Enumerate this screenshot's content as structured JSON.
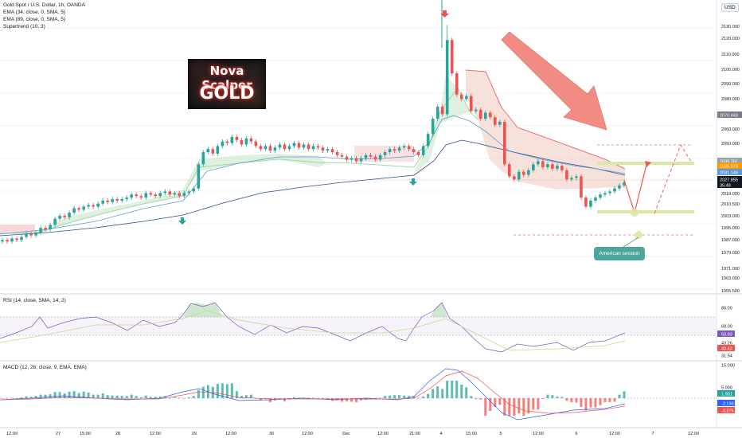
{
  "header": {
    "symbol": "Gold Spot / U.S. Dollar, 1h, OANDA",
    "ind1": "EMA (34, close, 0, SMA, 5)",
    "ind2": "EMA (89, close, 0, SMA, 5)",
    "ind3": "Supertrend (10, 3)"
  },
  "currency_badge": "USD",
  "logo": {
    "line1": "Nova Scalper",
    "line2": "GOLD"
  },
  "session_label": "American session",
  "rsi_label": "RSI (14, close, SMA, 14, 2)",
  "macd_label": "MACD (12, 26, close, 9, EMA, EMA)",
  "colors": {
    "up": "#26a69a",
    "down": "#ef5350",
    "ema34": "#5b9bd5",
    "ema89": "#2a4d8f",
    "st_up": "#a5d6a7",
    "st_down": "#e6a0a0",
    "arrow": "#f28080",
    "target": "#dbe8a3"
  },
  "chart_data": {
    "type": "candlestick",
    "price_axis": [
      "2130.000",
      "2120.000",
      "2110.000",
      "2100.000",
      "2090.000",
      "2080.000",
      "2060.000",
      "2050.000",
      "2018.000",
      "2010.500",
      "2003.000",
      "1995.000",
      "1987.000",
      "1979.000",
      "1971.000",
      "1963.000",
      "1955.500"
    ],
    "price_badges": [
      {
        "text": "2070.443",
        "color": "#787b86"
      },
      {
        "text": "2039.761",
        "color": "#90a4ae"
      },
      {
        "text": "2035.078",
        "color": "#ff9800"
      },
      {
        "text": "2031.149",
        "color": "#5b9bd5"
      },
      {
        "text": "2027.855",
        "color": "#131722"
      },
      {
        "text": "35:48",
        "color": "#131722"
      }
    ],
    "time_axis": [
      "12:00",
      "27",
      "15:00",
      "28",
      "12:00",
      "29",
      "12:00",
      "30",
      "12:00",
      "Dec",
      "12:00",
      "21:00",
      "4",
      "15:00",
      "5",
      "12:00",
      "6",
      "12:00",
      "7",
      "12:00"
    ],
    "close_series": [
      1990,
      1989,
      1991,
      1990,
      1992,
      1994,
      1993,
      1995,
      1998,
      1997,
      2000,
      2004,
      2006,
      2005,
      2008,
      2011,
      2010,
      2012,
      2013,
      2012,
      2014,
      2016,
      2015,
      2017,
      2016,
      2017,
      2018,
      2020,
      2019,
      2018,
      2021,
      2020,
      2019,
      2021,
      2022,
      2020,
      2021,
      2019,
      2021,
      2022,
      2024,
      2040,
      2048,
      2050,
      2047,
      2052,
      2055,
      2054,
      2058,
      2056,
      2053,
      2057,
      2055,
      2052,
      2050,
      2052,
      2049,
      2051,
      2053,
      2050,
      2052,
      2054,
      2051,
      2053,
      2050,
      2052,
      2051,
      2049,
      2050,
      2048,
      2046,
      2045,
      2043,
      2044,
      2042,
      2044,
      2046,
      2045,
      2043,
      2046,
      2048,
      2050,
      2049,
      2051,
      2052,
      2050,
      2048,
      2046,
      2052,
      2060,
      2070,
      2078,
      2073,
      2122,
      2100,
      2086,
      2083,
      2085,
      2075,
      2076,
      2070,
      2074,
      2071,
      2066,
      2068,
      2040,
      2032,
      2030,
      2035,
      2033,
      2036,
      2040,
      2042,
      2038,
      2040,
      2037,
      2039,
      2036,
      2030,
      2031,
      2032,
      2018,
      2012,
      2016,
      2018,
      2020,
      2021,
      2022,
      2024,
      2026,
      2028
    ],
    "annotations": [
      "support 2003.0",
      "target 2048",
      "pivot 1989.6"
    ],
    "rsi_axis": [
      "80.00",
      "60.00",
      "50.93",
      "43.26",
      "40.42",
      "31.54"
    ],
    "macd_axis": [
      "15.000",
      "5.000",
      "1.901",
      "-2.130",
      "-3.275"
    ]
  }
}
